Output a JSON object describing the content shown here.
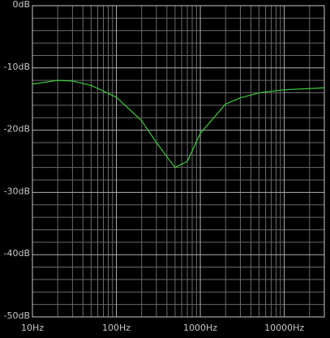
{
  "chart_data": {
    "type": "line",
    "log_x": true,
    "grid": true,
    "x": [
      10,
      20,
      30,
      50,
      100,
      200,
      300,
      500,
      700,
      1000,
      2000,
      3000,
      5000,
      10000,
      30000
    ],
    "series": [
      {
        "color": "#3ccc3c",
        "values": [
          -12.6,
          -12.0,
          -12.1,
          -12.8,
          -14.7,
          -18.5,
          -22.0,
          -26.0,
          -25.0,
          -20.5,
          -15.8,
          -14.8,
          -14.0,
          -13.5,
          -13.2
        ]
      }
    ],
    "xlim": [
      10,
      30000
    ],
    "xticks": [
      {
        "value": 10,
        "label": "10Hz"
      },
      {
        "value": 100,
        "label": "100Hz"
      },
      {
        "value": 1000,
        "label": "1000Hz"
      },
      {
        "value": 10000,
        "label": "10000Hz"
      }
    ],
    "minor_xticks": [
      20,
      30,
      40,
      50,
      60,
      70,
      80,
      90,
      200,
      300,
      400,
      500,
      600,
      700,
      800,
      900,
      2000,
      3000,
      4000,
      5000,
      6000,
      7000,
      8000,
      9000,
      20000
    ],
    "ylim": [
      -50,
      0
    ],
    "yticks": [
      {
        "value": 0,
        "label": "0dB"
      },
      {
        "value": -10,
        "label": "-10dB"
      },
      {
        "value": -20,
        "label": "-20dB"
      },
      {
        "value": -30,
        "label": "-30dB"
      },
      {
        "value": -40,
        "label": "-40dB"
      },
      {
        "value": -50,
        "label": "-50dB"
      }
    ],
    "minor_yticks": [
      -2,
      -4,
      -6,
      -8,
      -12,
      -14,
      -16,
      -18,
      -22,
      -24,
      -26,
      -28,
      -32,
      -34,
      -36,
      -38,
      -42,
      -44,
      -46,
      -48
    ]
  }
}
